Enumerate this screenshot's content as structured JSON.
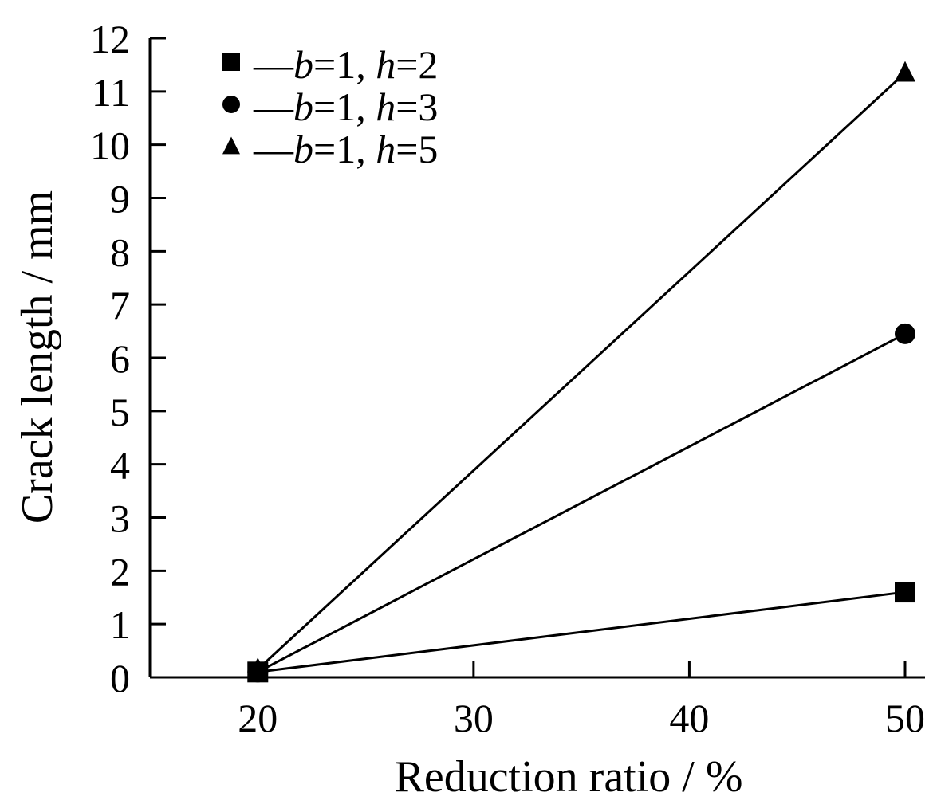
{
  "chart_data": {
    "type": "line",
    "title": "",
    "xlabel": "Reduction ratio / %",
    "ylabel": "Crack length / mm",
    "xlim": [
      15,
      50
    ],
    "ylim": [
      0,
      12
    ],
    "xticks": [
      20,
      30,
      40,
      50
    ],
    "yticks": [
      0,
      1,
      2,
      3,
      4,
      5,
      6,
      7,
      8,
      9,
      10,
      11,
      12
    ],
    "grid": false,
    "legend_position": "top-left",
    "series": [
      {
        "name_prefix": "—",
        "name_b_var": "b",
        "name_b_val": "=1, ",
        "name_h_var": "h",
        "name_h_val": "=2",
        "marker": "square",
        "x": [
          20,
          50
        ],
        "y": [
          0.1,
          1.6
        ]
      },
      {
        "name_prefix": "—",
        "name_b_var": "b",
        "name_b_val": "=1, ",
        "name_h_var": "h",
        "name_h_val": "=3",
        "marker": "circle",
        "x": [
          20,
          50
        ],
        "y": [
          0.1,
          6.45
        ]
      },
      {
        "name_prefix": "—",
        "name_b_var": "b",
        "name_b_val": "=1, ",
        "name_h_var": "h",
        "name_h_val": "=5",
        "marker": "triangle",
        "x": [
          20,
          50
        ],
        "y": [
          0.15,
          11.35
        ]
      }
    ]
  }
}
